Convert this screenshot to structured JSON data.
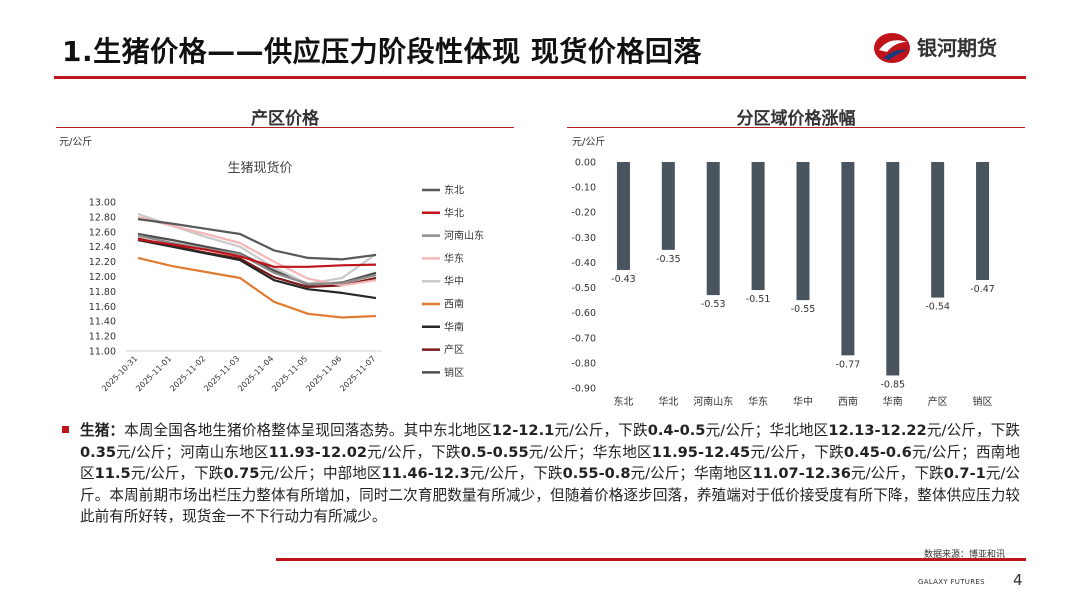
{
  "title": "1.生猪价格——供应压力阶段性体现  现货价格回落",
  "brand": {
    "name": "银河期货",
    "color": "#c0141b"
  },
  "left_panel": {
    "title": "产区价格",
    "unit": "元/公斤"
  },
  "right_panel": {
    "title": "分区域价格涨幅",
    "unit": "元/公斤"
  },
  "chart_data": [
    {
      "type": "line",
      "title": "生猪现货价",
      "xlabel": "",
      "ylabel": "元/公斤",
      "ylim": [
        11.0,
        13.0
      ],
      "y_ticks": [
        "13.00",
        "12.80",
        "12.60",
        "12.40",
        "12.20",
        "12.00",
        "11.80",
        "11.60",
        "11.40",
        "11.20",
        "11.00"
      ],
      "x": [
        "2025-10-31",
        "2025-11-01",
        "2025-11-02",
        "2025-11-03",
        "2025-11-04",
        "2025-11-05",
        "2025-11-06",
        "2025-11-07"
      ],
      "legend_position": "right",
      "series": [
        {
          "name": "东北",
          "color": "#595959",
          "values": [
            12.77,
            12.71,
            12.64,
            12.57,
            12.35,
            12.25,
            12.23,
            12.29
          ]
        },
        {
          "name": "华北",
          "color": "#c0141b",
          "values": [
            12.5,
            12.43,
            12.36,
            12.27,
            12.13,
            12.13,
            12.15,
            12.16
          ]
        },
        {
          "name": "河南山东",
          "color": "#8c8c8c",
          "values": [
            12.55,
            12.45,
            12.37,
            12.3,
            12.05,
            11.9,
            11.91,
            12.02
          ]
        },
        {
          "name": "华东",
          "color": "#f4b6b6",
          "values": [
            12.8,
            12.68,
            12.57,
            12.45,
            12.2,
            11.97,
            11.88,
            11.95
          ]
        },
        {
          "name": "华中",
          "color": "#c9c9c9",
          "values": [
            12.84,
            12.68,
            12.53,
            12.4,
            12.12,
            11.9,
            11.98,
            12.3
          ]
        },
        {
          "name": "西南",
          "color": "#e07b2f",
          "values": [
            12.25,
            12.14,
            12.06,
            11.98,
            11.66,
            11.5,
            11.45,
            11.47
          ]
        },
        {
          "name": "华南",
          "color": "#262626",
          "values": [
            12.49,
            12.4,
            12.31,
            12.22,
            11.95,
            11.83,
            11.78,
            11.71
          ]
        },
        {
          "name": "产区",
          "color": "#7a1a1a",
          "values": [
            12.51,
            12.41,
            12.32,
            12.24,
            11.99,
            11.86,
            11.88,
            11.98
          ]
        },
        {
          "name": "销区",
          "color": "#4d4d4d",
          "values": [
            12.57,
            12.49,
            12.4,
            12.31,
            12.08,
            11.89,
            11.92,
            12.05
          ]
        }
      ]
    },
    {
      "type": "bar",
      "title": "分区域价格涨幅",
      "ylabel": "元/公斤",
      "ylim": [
        -0.9,
        0.0
      ],
      "y_ticks": [
        "0.00",
        "-0.10",
        "-0.20",
        "-0.30",
        "-0.40",
        "-0.50",
        "-0.60",
        "-0.70",
        "-0.80",
        "-0.90"
      ],
      "categories": [
        "东北",
        "华北",
        "河南山东",
        "华东",
        "华中",
        "西南",
        "华南",
        "产区",
        "销区"
      ],
      "values": [
        -0.43,
        -0.35,
        -0.53,
        -0.51,
        -0.55,
        -0.77,
        -0.85,
        -0.54,
        -0.47
      ],
      "labels": [
        "-0.43",
        "-0.35",
        "-0.53",
        "-0.51",
        "-0.55",
        "-0.77",
        "-0.85",
        "-0.54",
        "-0.47"
      ],
      "color": "#4a545e"
    }
  ],
  "paragraph": [
    {
      "t": "生猪：",
      "b": true
    },
    {
      "t": "本周全国各地生猪价格整体呈现回落态势。其中东北地区",
      "b": false
    },
    {
      "t": "12-12.1",
      "b": true
    },
    {
      "t": "元/公斤，下跌",
      "b": false
    },
    {
      "t": "0.4-0.5",
      "b": true
    },
    {
      "t": "元/公斤；华北地区",
      "b": false
    },
    {
      "t": "12.13-12.22",
      "b": true
    },
    {
      "t": "元/公斤，下跌",
      "b": false
    },
    {
      "t": "0.35",
      "b": true
    },
    {
      "t": "元/公斤；河南山东地区",
      "b": false
    },
    {
      "t": "11.93-12.02",
      "b": true
    },
    {
      "t": "元/公斤，下跌",
      "b": false
    },
    {
      "t": "0.5-0.55",
      "b": true
    },
    {
      "t": "元/公斤；华东地区",
      "b": false
    },
    {
      "t": "11.95-12.45",
      "b": true
    },
    {
      "t": "元/公斤，下跌",
      "b": false
    },
    {
      "t": "0.45-0.6",
      "b": true
    },
    {
      "t": "元/公斤；西南地区",
      "b": false
    },
    {
      "t": "11.5",
      "b": true
    },
    {
      "t": "元/公斤，下跌",
      "b": false
    },
    {
      "t": "0.75",
      "b": true
    },
    {
      "t": "元/公斤；中部地区",
      "b": false
    },
    {
      "t": "11.46-12.3",
      "b": true
    },
    {
      "t": "元/公斤，下跌",
      "b": false
    },
    {
      "t": "0.55-0.8",
      "b": true
    },
    {
      "t": "元/公斤；华南地区",
      "b": false
    },
    {
      "t": "11.07-12.36",
      "b": true
    },
    {
      "t": "元/公斤，下跌",
      "b": false
    },
    {
      "t": "0.7-1",
      "b": true
    },
    {
      "t": "元/公斤。本周前期市场出栏压力整体有所增加，同时二次育肥数量有所减少，但随着价格逐步回落，养殖端对于低价接受度有所下降，整体供应压力较此前有所好转，现货金一不下行动力有所减少。",
      "b": false
    }
  ],
  "source": "数据来源：博亚和讯",
  "footer": "GALAXY FUTURES",
  "page_number": "4"
}
